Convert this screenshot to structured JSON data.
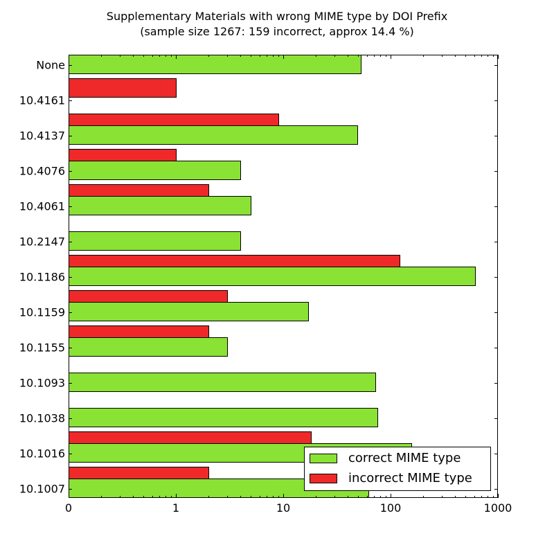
{
  "title": {
    "line1": "Supplementary Materials with wrong MIME type by DOI Prefix",
    "line2": "(sample size 1267: 159 incorrect, approx 14.4 %)"
  },
  "colors": {
    "correct": "#8ae234",
    "incorrect": "#ef2929"
  },
  "legend": {
    "items": [
      {
        "label": "correct MIME type",
        "color": "#8ae234"
      },
      {
        "label": "incorrect MIME type",
        "color": "#ef2929"
      }
    ]
  },
  "x_ticks": [
    "0",
    "1",
    "10",
    "100",
    "1000"
  ],
  "chart_data": {
    "type": "bar",
    "orientation": "horizontal",
    "title": "Supplementary Materials with wrong MIME type by DOI Prefix",
    "subtitle": "(sample size 1267: 159 incorrect, approx 14.4 %)",
    "xlabel": "",
    "ylabel": "",
    "xscale": "log (symlog-style, 0 at left edge)",
    "xlim": [
      0,
      1000
    ],
    "x_tick_labels": [
      "0",
      "1",
      "10",
      "100",
      "1000"
    ],
    "grid": false,
    "legend_position": "lower right",
    "categories": [
      "None",
      "10.4161",
      "10.4137",
      "10.4076",
      "10.4061",
      "10.2147",
      "10.1186",
      "10.1159",
      "10.1155",
      "10.1093",
      "10.1038",
      "10.1016",
      "10.1007"
    ],
    "series": [
      {
        "name": "correct MIME type",
        "color": "#8ae234",
        "values": [
          53,
          0,
          49,
          4,
          5,
          4,
          609,
          17,
          3,
          72,
          75,
          155,
          62
        ]
      },
      {
        "name": "incorrect MIME type",
        "color": "#ef2929",
        "values": [
          0,
          1,
          9,
          1,
          2,
          0,
          121,
          3,
          2,
          0,
          0,
          18,
          2
        ]
      }
    ]
  }
}
